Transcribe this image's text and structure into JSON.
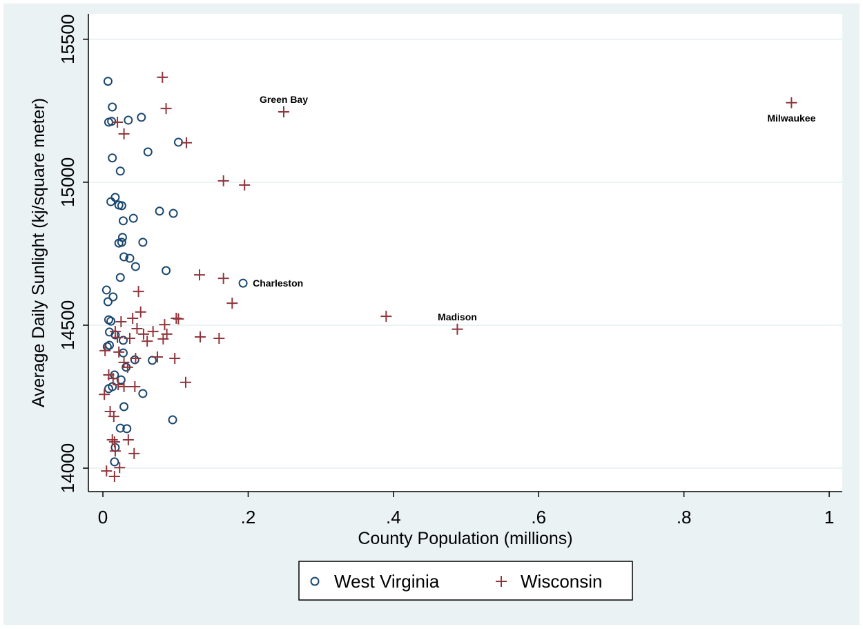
{
  "chart_data": {
    "type": "scatter",
    "x_label": "County Population (millions)",
    "y_label": "Average Daily Sunlight (kj/square meter)",
    "xlim": [
      -0.02,
      1.018
    ],
    "ylim": [
      13918,
      15589
    ],
    "xticks": [
      0,
      {
        "value": 0.2,
        "label": ".2"
      },
      {
        "value": 0.4,
        "label": ".4"
      },
      {
        "value": 0.6,
        "label": ".6"
      },
      {
        "value": 0.8,
        "label": ".8"
      },
      1
    ],
    "yticks": [
      14000,
      14500,
      15000,
      15500
    ],
    "grid": true,
    "legend": "bottom",
    "series": [
      {
        "name": "West Virginia",
        "color": "#1a476f",
        "marker": "circle",
        "x": [
          0.007,
          0.013,
          0.008,
          0.012,
          0.053,
          0.035,
          0.104,
          0.062,
          0.013,
          0.024,
          0.017,
          0.011,
          0.022,
          0.026,
          0.078,
          0.097,
          0.042,
          0.028,
          0.027,
          0.026,
          0.022,
          0.055,
          0.029,
          0.037,
          0.045,
          0.087,
          0.024,
          0.193,
          0.005,
          0.014,
          0.007,
          0.008,
          0.011,
          0.009,
          0.017,
          0.009,
          0.006,
          0.028,
          0.028,
          0.044,
          0.068,
          0.032,
          0.016,
          0.025,
          0.013,
          0.008,
          0.055,
          0.029,
          0.096,
          0.024,
          0.033,
          0.017,
          0.016
        ],
        "values": [
          15353,
          15263,
          15210,
          15213,
          15227,
          15217,
          15140,
          15106,
          15085,
          15039,
          14947,
          14932,
          14920,
          14918,
          14899,
          14891,
          14874,
          14865,
          14807,
          14790,
          14787,
          14790,
          14739,
          14734,
          14705,
          14691,
          14667,
          14647,
          14623,
          14599,
          14582,
          14519,
          14514,
          14476,
          14466,
          14430,
          14425,
          14447,
          14403,
          14379,
          14377,
          14353,
          14326,
          14309,
          14285,
          14278,
          14261,
          14215,
          14169,
          14140,
          14138,
          14072,
          14022
        ]
      },
      {
        "name": "Wisconsin",
        "color": "#90353b",
        "marker": "plus",
        "x": [
          0.082,
          0.087,
          0.249,
          0.948,
          0.02,
          0.029,
          0.115,
          0.166,
          0.195,
          0.133,
          0.166,
          0.049,
          0.178,
          0.39,
          0.488,
          0.052,
          0.101,
          0.104,
          0.041,
          0.025,
          0.085,
          0.047,
          0.134,
          0.16,
          0.088,
          0.083,
          0.061,
          0.037,
          0.017,
          0.02,
          0.069,
          0.056,
          0.003,
          0.022,
          0.045,
          0.075,
          0.099,
          0.029,
          0.034,
          0.008,
          0.014,
          0.021,
          0.029,
          0.044,
          0.114,
          0.002,
          0.01,
          0.015,
          0.035,
          0.013,
          0.016,
          0.043,
          0.017,
          0.023,
          0.005,
          0.016
        ],
        "values": [
          15367,
          15258,
          15246,
          15278,
          15210,
          15169,
          15138,
          15005,
          14990,
          14676,
          14664,
          14618,
          14577,
          14531,
          14486,
          14546,
          14524,
          14522,
          14524,
          14512,
          14502,
          14488,
          14459,
          14454,
          14469,
          14452,
          14444,
          14454,
          14478,
          14457,
          14478,
          14469,
          14411,
          14406,
          14384,
          14389,
          14384,
          14370,
          14353,
          14326,
          14314,
          14292,
          14285,
          14285,
          14300,
          14258,
          14198,
          14181,
          14099,
          14099,
          14092,
          14051,
          14060,
          14002,
          13990,
          13971
        ]
      }
    ],
    "annotations": [
      {
        "text": "Green Bay",
        "x": 0.249,
        "y": 15246,
        "position": "above"
      },
      {
        "text": "Milwaukee",
        "x": 0.948,
        "y": 15278,
        "position": "below"
      },
      {
        "text": "Charleston",
        "x": 0.193,
        "y": 14647,
        "position": "right"
      },
      {
        "text": "Madison",
        "x": 0.488,
        "y": 14486,
        "position": "above"
      }
    ]
  }
}
